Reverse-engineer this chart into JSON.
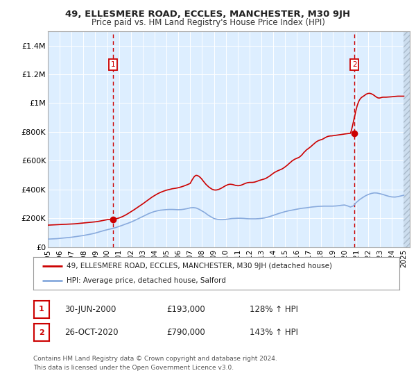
{
  "title": "49, ELLESMERE ROAD, ECCLES, MANCHESTER, M30 9JH",
  "subtitle": "Price paid vs. HM Land Registry's House Price Index (HPI)",
  "legend_line1": "49, ELLESMERE ROAD, ECCLES, MANCHESTER, M30 9JH (detached house)",
  "legend_line2": "HPI: Average price, detached house, Salford",
  "footer": "Contains HM Land Registry data © Crown copyright and database right 2024.\nThis data is licensed under the Open Government Licence v3.0.",
  "annotation1_date": "30-JUN-2000",
  "annotation1_price": "£193,000",
  "annotation1_hpi": "128% ↑ HPI",
  "annotation2_date": "26-OCT-2020",
  "annotation2_price": "£790,000",
  "annotation2_hpi": "143% ↑ HPI",
  "sale1_x": 2000.5,
  "sale1_y": 193000,
  "sale2_x": 2020.83,
  "sale2_y": 790000,
  "vline1_x": 2000.5,
  "vline2_x": 2020.83,
  "ylim": [
    0,
    1500000
  ],
  "xlim": [
    1995.0,
    2025.5
  ],
  "yticks": [
    0,
    200000,
    400000,
    600000,
    800000,
    1000000,
    1200000,
    1400000
  ],
  "ytick_labels": [
    "£0",
    "£200K",
    "£400K",
    "£600K",
    "£800K",
    "£1M",
    "£1.2M",
    "£1.4M"
  ],
  "xticks": [
    1995,
    1996,
    1997,
    1998,
    1999,
    2000,
    2001,
    2002,
    2003,
    2004,
    2005,
    2006,
    2007,
    2008,
    2009,
    2010,
    2011,
    2012,
    2013,
    2014,
    2015,
    2016,
    2017,
    2018,
    2019,
    2020,
    2021,
    2022,
    2023,
    2024,
    2025
  ],
  "bg_color": "#ddeeff",
  "red_color": "#cc0000",
  "blue_color": "#88aadd",
  "grid_color": "#ffffff",
  "vline_color": "#cc0000",
  "hpi_x": [
    1995.0,
    1995.25,
    1995.5,
    1995.75,
    1996.0,
    1996.25,
    1996.5,
    1996.75,
    1997.0,
    1997.25,
    1997.5,
    1997.75,
    1998.0,
    1998.25,
    1998.5,
    1998.75,
    1999.0,
    1999.25,
    1999.5,
    1999.75,
    2000.0,
    2000.25,
    2000.5,
    2000.75,
    2001.0,
    2001.25,
    2001.5,
    2001.75,
    2002.0,
    2002.25,
    2002.5,
    2002.75,
    2003.0,
    2003.25,
    2003.5,
    2003.75,
    2004.0,
    2004.25,
    2004.5,
    2004.75,
    2005.0,
    2005.25,
    2005.5,
    2005.75,
    2006.0,
    2006.25,
    2006.5,
    2006.75,
    2007.0,
    2007.25,
    2007.5,
    2007.75,
    2008.0,
    2008.25,
    2008.5,
    2008.75,
    2009.0,
    2009.25,
    2009.5,
    2009.75,
    2010.0,
    2010.25,
    2010.5,
    2010.75,
    2011.0,
    2011.25,
    2011.5,
    2011.75,
    2012.0,
    2012.25,
    2012.5,
    2012.75,
    2013.0,
    2013.25,
    2013.5,
    2013.75,
    2014.0,
    2014.25,
    2014.5,
    2014.75,
    2015.0,
    2015.25,
    2015.5,
    2015.75,
    2016.0,
    2016.25,
    2016.5,
    2016.75,
    2017.0,
    2017.25,
    2017.5,
    2017.75,
    2018.0,
    2018.25,
    2018.5,
    2018.75,
    2019.0,
    2019.25,
    2019.5,
    2019.75,
    2020.0,
    2020.25,
    2020.5,
    2020.75,
    2021.0,
    2021.25,
    2021.5,
    2021.75,
    2022.0,
    2022.25,
    2022.5,
    2022.75,
    2023.0,
    2023.25,
    2023.5,
    2023.75,
    2024.0,
    2024.25,
    2024.5,
    2024.75,
    2025.0
  ],
  "hpi_y": [
    55000,
    56000,
    57000,
    58000,
    60000,
    62000,
    64000,
    66000,
    68000,
    71000,
    74000,
    77000,
    80000,
    84000,
    88000,
    92000,
    97000,
    103000,
    109000,
    115000,
    120000,
    125000,
    130000,
    136000,
    143000,
    150000,
    158000,
    165000,
    173000,
    182000,
    192000,
    202000,
    212000,
    222000,
    232000,
    240000,
    247000,
    252000,
    256000,
    258000,
    260000,
    261000,
    261000,
    260000,
    259000,
    260000,
    263000,
    267000,
    272000,
    274000,
    271000,
    262000,
    250000,
    238000,
    222000,
    210000,
    198000,
    193000,
    190000,
    190000,
    192000,
    195000,
    198000,
    199000,
    200000,
    200000,
    199000,
    197000,
    196000,
    196000,
    196000,
    197000,
    199000,
    202000,
    207000,
    213000,
    220000,
    227000,
    234000,
    240000,
    246000,
    251000,
    255000,
    259000,
    263000,
    267000,
    270000,
    272000,
    275000,
    278000,
    280000,
    282000,
    283000,
    284000,
    284000,
    284000,
    284000,
    285000,
    287000,
    290000,
    292000,
    286000,
    278000,
    286000,
    310000,
    328000,
    342000,
    355000,
    365000,
    372000,
    376000,
    375000,
    370000,
    365000,
    358000,
    352000,
    348000,
    347000,
    350000,
    355000,
    360000
  ],
  "red_x": [
    1995.0,
    1995.25,
    1995.5,
    1995.75,
    1996.0,
    1996.25,
    1996.5,
    1996.75,
    1997.0,
    1997.25,
    1997.5,
    1997.75,
    1998.0,
    1998.25,
    1998.5,
    1998.75,
    1999.0,
    1999.25,
    1999.5,
    1999.75,
    2000.0,
    2000.25,
    2000.5,
    2000.75,
    2001.0,
    2001.25,
    2001.5,
    2001.75,
    2002.0,
    2002.25,
    2002.5,
    2002.75,
    2003.0,
    2003.25,
    2003.5,
    2003.75,
    2004.0,
    2004.25,
    2004.5,
    2004.75,
    2005.0,
    2005.25,
    2005.5,
    2005.75,
    2006.0,
    2006.25,
    2006.5,
    2006.75,
    2007.0,
    2007.08,
    2007.17,
    2007.25,
    2007.33,
    2007.42,
    2007.5,
    2007.58,
    2007.67,
    2007.75,
    2007.83,
    2007.92,
    2008.0,
    2008.08,
    2008.17,
    2008.25,
    2008.33,
    2008.42,
    2008.5,
    2008.58,
    2008.67,
    2008.75,
    2008.83,
    2008.92,
    2009.0,
    2009.08,
    2009.17,
    2009.25,
    2009.33,
    2009.42,
    2009.5,
    2009.58,
    2009.67,
    2009.75,
    2009.83,
    2009.92,
    2010.0,
    2010.08,
    2010.17,
    2010.25,
    2010.33,
    2010.42,
    2010.5,
    2010.58,
    2010.67,
    2010.75,
    2010.83,
    2010.92,
    2011.0,
    2011.08,
    2011.17,
    2011.25,
    2011.33,
    2011.42,
    2011.5,
    2011.58,
    2011.67,
    2011.75,
    2011.83,
    2011.92,
    2012.0,
    2012.08,
    2012.17,
    2012.25,
    2012.33,
    2012.42,
    2012.5,
    2012.58,
    2012.67,
    2012.75,
    2012.83,
    2012.92,
    2013.0,
    2013.08,
    2013.17,
    2013.25,
    2013.33,
    2013.42,
    2013.5,
    2013.58,
    2013.67,
    2013.75,
    2013.83,
    2013.92,
    2014.0,
    2014.08,
    2014.17,
    2014.25,
    2014.33,
    2014.42,
    2014.5,
    2014.58,
    2014.67,
    2014.75,
    2014.83,
    2014.92,
    2015.0,
    2015.08,
    2015.17,
    2015.25,
    2015.33,
    2015.42,
    2015.5,
    2015.58,
    2015.67,
    2015.75,
    2015.83,
    2015.92,
    2016.0,
    2016.08,
    2016.17,
    2016.25,
    2016.33,
    2016.42,
    2016.5,
    2016.58,
    2016.67,
    2016.75,
    2016.83,
    2016.92,
    2017.0,
    2017.08,
    2017.17,
    2017.25,
    2017.33,
    2017.42,
    2017.5,
    2017.58,
    2017.67,
    2017.75,
    2017.83,
    2017.92,
    2018.0,
    2018.08,
    2018.17,
    2018.25,
    2018.33,
    2018.42,
    2018.5,
    2018.58,
    2018.67,
    2018.75,
    2018.83,
    2018.92,
    2019.0,
    2019.08,
    2019.17,
    2019.25,
    2019.33,
    2019.42,
    2019.5,
    2019.58,
    2019.67,
    2019.75,
    2019.83,
    2019.92,
    2020.0,
    2020.08,
    2020.17,
    2020.25,
    2020.33,
    2020.42,
    2020.5,
    2020.58,
    2020.67,
    2020.75,
    2020.83,
    2020.92,
    2021.0,
    2021.08,
    2021.17,
    2021.25,
    2021.33,
    2021.42,
    2021.5,
    2021.58,
    2021.67,
    2021.75,
    2021.83,
    2021.92,
    2022.0,
    2022.08,
    2022.17,
    2022.25,
    2022.33,
    2022.42,
    2022.5,
    2022.58,
    2022.67,
    2022.75,
    2022.83,
    2022.92,
    2023.0,
    2023.08,
    2023.17,
    2023.25,
    2023.33,
    2023.5,
    2023.67,
    2023.83,
    2024.0,
    2024.17,
    2024.33,
    2024.5,
    2024.67,
    2024.83,
    2025.0
  ],
  "red_y": [
    152000,
    153000,
    154000,
    155000,
    156000,
    157000,
    158000,
    159000,
    160000,
    161000,
    163000,
    165000,
    167000,
    169000,
    171000,
    173000,
    175000,
    178000,
    182000,
    186000,
    190000,
    192000,
    193000,
    196000,
    202000,
    210000,
    220000,
    232000,
    245000,
    258000,
    272000,
    286000,
    300000,
    315000,
    330000,
    345000,
    358000,
    370000,
    380000,
    388000,
    395000,
    400000,
    405000,
    408000,
    412000,
    418000,
    425000,
    433000,
    442000,
    455000,
    468000,
    478000,
    488000,
    495000,
    498000,
    497000,
    494000,
    490000,
    484000,
    477000,
    469000,
    460000,
    451000,
    443000,
    435000,
    428000,
    422000,
    416000,
    411000,
    406000,
    402000,
    399000,
    397000,
    396000,
    396000,
    397000,
    399000,
    401000,
    404000,
    407000,
    411000,
    415000,
    419000,
    423000,
    427000,
    430000,
    433000,
    435000,
    436000,
    436000,
    435000,
    434000,
    432000,
    430000,
    428000,
    427000,
    426000,
    426000,
    427000,
    429000,
    431000,
    434000,
    437000,
    440000,
    443000,
    445000,
    447000,
    448000,
    449000,
    449000,
    449000,
    449000,
    450000,
    451000,
    453000,
    455000,
    458000,
    461000,
    463000,
    465000,
    467000,
    469000,
    471000,
    473000,
    476000,
    479000,
    483000,
    487000,
    492000,
    497000,
    502000,
    507000,
    512000,
    517000,
    521000,
    525000,
    528000,
    531000,
    534000,
    537000,
    540000,
    543000,
    547000,
    552000,
    557000,
    562000,
    568000,
    574000,
    580000,
    586000,
    592000,
    598000,
    603000,
    607000,
    611000,
    614000,
    617000,
    620000,
    623000,
    628000,
    634000,
    641000,
    649000,
    657000,
    664000,
    671000,
    677000,
    682000,
    687000,
    692000,
    698000,
    704000,
    710000,
    716000,
    722000,
    728000,
    733000,
    737000,
    740000,
    743000,
    745000,
    747000,
    750000,
    754000,
    758000,
    762000,
    765000,
    768000,
    770000,
    771000,
    772000,
    772000,
    773000,
    774000,
    775000,
    776000,
    777000,
    778000,
    779000,
    780000,
    781000,
    782000,
    783000,
    784000,
    785000,
    786000,
    787000,
    788000,
    789000,
    789500,
    790000,
    810000,
    840000,
    870000,
    900000,
    930000,
    960000,
    985000,
    1005000,
    1020000,
    1030000,
    1038000,
    1043000,
    1047000,
    1052000,
    1057000,
    1062000,
    1065000,
    1067000,
    1068000,
    1067000,
    1065000,
    1062000,
    1058000,
    1053000,
    1048000,
    1043000,
    1039000,
    1036000,
    1035000,
    1036000,
    1038000,
    1040000,
    1041000,
    1041000,
    1041000,
    1042000,
    1043000,
    1044000,
    1046000,
    1047000,
    1048000,
    1048000,
    1048000,
    1048000
  ]
}
